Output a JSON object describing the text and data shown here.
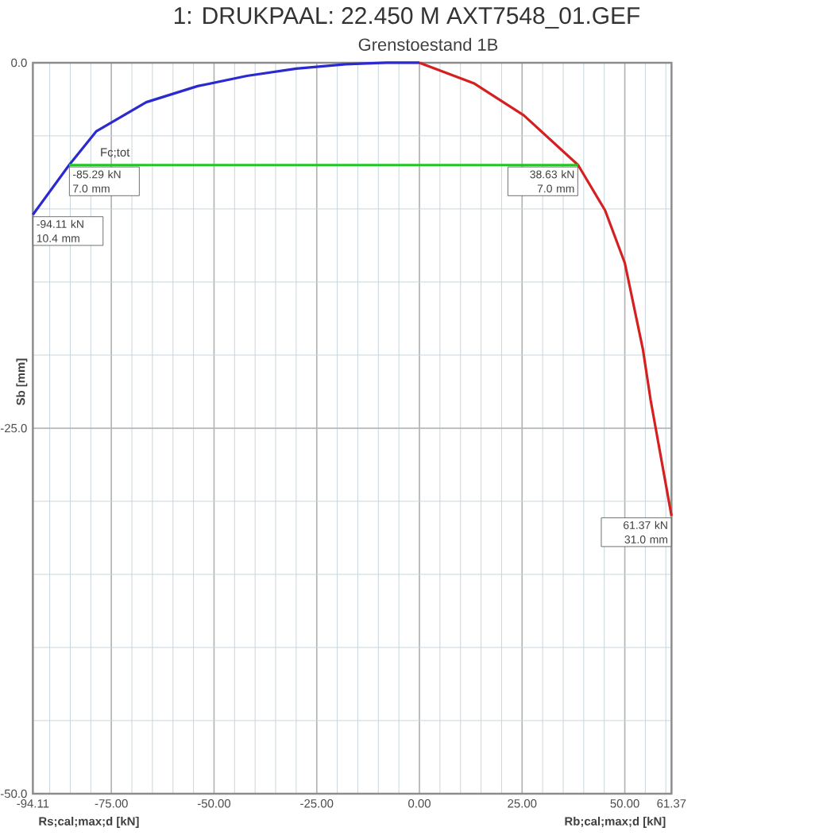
{
  "chart_data": {
    "type": "line",
    "title": "1: DRUKPAAL: 22.450 M AXT7548_01.GEF",
    "subtitle": "Grenstoestand 1B",
    "xlabel": "Rs;cal;max;d [kN]",
    "ylabel": "Sb [mm]",
    "series": [
      {
        "color": "#2a2ad0",
        "x": [
          -94.11,
          -85.29,
          -78.7,
          -66.5,
          -54.0,
          -42.0,
          -30.0,
          -18.0,
          -8.0,
          0.0
        ],
        "values": [
          -10.4,
          -7.0,
          -4.7,
          -2.7,
          -1.6,
          -0.9,
          -0.4,
          -0.1,
          0.0,
          0.0
        ]
      },
      {
        "color": "#d42020",
        "x": [
          0.0,
          13.2,
          25.4,
          38.63,
          45.2,
          50.0,
          54.4,
          56.3,
          61.37
        ],
        "values": [
          0.0,
          -1.4,
          -3.6,
          -7.0,
          -10.1,
          -13.7,
          -19.6,
          -23.1,
          -31.0
        ]
      },
      {
        "name": "Fc;tot",
        "color": "#22c622",
        "x": [
          -85.29,
          38.63
        ],
        "values": [
          -7.0,
          -7.0
        ]
      }
    ],
    "xlim": [
      -94.11,
      61.37
    ],
    "ylim": [
      -50,
      0
    ],
    "xticks": [
      {
        "value": -94.11,
        "label": "-94.11"
      },
      {
        "value": -75,
        "label": "-75.00"
      },
      {
        "value": -50,
        "label": "-50.00"
      },
      {
        "value": -25,
        "label": "-25.00"
      },
      {
        "value": 0,
        "label": "0.00"
      },
      {
        "value": 25,
        "label": "25.00"
      },
      {
        "value": 50,
        "label": "50.00"
      },
      {
        "value": 61.37,
        "label": "61.37"
      }
    ],
    "yticks": [
      {
        "value": 0,
        "label": "0.0"
      },
      {
        "value": -25,
        "label": "-25.0"
      },
      {
        "value": -50,
        "label": "-50.0"
      }
    ],
    "grid": true,
    "marker": "none",
    "line_style": "solid",
    "annotations": [
      {
        "text": "-94.11 kN 10.4 mm",
        "x": -94.11,
        "y": -10.4
      },
      {
        "text": "-85.29 kN 7.0 mm",
        "x": -85.29,
        "y": -7.0
      },
      {
        "text": "38.63 kN 7.0 mm",
        "x": 38.63,
        "y": -7.0
      },
      {
        "text": "61.37 kN 31.0 mm",
        "x": 61.37,
        "y": -31.0
      },
      "Rb;cal;max;d [kN]"
    ]
  }
}
